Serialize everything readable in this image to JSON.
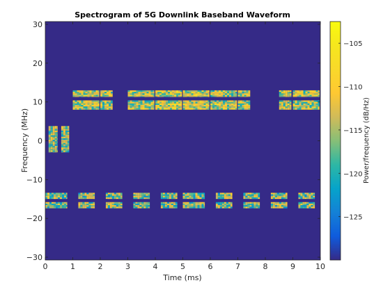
{
  "chart_data": {
    "type": "heatmap",
    "title": "Spectrogram of 5G Downlink Baseband Waveform",
    "xlabel": "Time (ms)",
    "ylabel": "Frequency (MHz)",
    "xlim": [
      0,
      10
    ],
    "ylim": [
      -30.72,
      30.72
    ],
    "xticks": [
      0,
      1,
      2,
      3,
      4,
      5,
      6,
      7,
      8,
      9,
      10
    ],
    "yticks": [
      -30,
      -20,
      -10,
      0,
      10,
      20,
      30
    ],
    "grid": false,
    "colorbar": {
      "label": "Power/frequency (dB/Hz)",
      "range": [
        -130,
        -102.5
      ],
      "ticks": [
        -125,
        -120,
        -115,
        -110,
        -105
      ],
      "colormap": "parula"
    },
    "background_level_db": -130,
    "bursts": [
      {
        "t": [
          0.12,
          0.45
        ],
        "f": [
          -3.0,
          3.8
        ],
        "level_db": -116
      },
      {
        "t": [
          0.58,
          0.87
        ],
        "f": [
          -3.0,
          3.8
        ],
        "level_db": -116
      },
      {
        "t": [
          1.0,
          1.97
        ],
        "f": [
          11.3,
          13.0
        ],
        "level_db": -114
      },
      {
        "t": [
          2.0,
          2.45
        ],
        "f": [
          11.3,
          13.0
        ],
        "level_db": -114
      },
      {
        "t": [
          3.0,
          3.97
        ],
        "f": [
          11.3,
          13.0
        ],
        "level_db": -114
      },
      {
        "t": [
          4.0,
          4.97
        ],
        "f": [
          11.3,
          13.0
        ],
        "level_db": -113
      },
      {
        "t": [
          5.0,
          5.97
        ],
        "f": [
          11.3,
          13.0
        ],
        "level_db": -113
      },
      {
        "t": [
          6.0,
          6.97
        ],
        "f": [
          11.3,
          13.0
        ],
        "level_db": -114
      },
      {
        "t": [
          7.0,
          7.45
        ],
        "f": [
          11.3,
          13.0
        ],
        "level_db": -114
      },
      {
        "t": [
          8.5,
          8.95
        ],
        "f": [
          11.3,
          13.0
        ],
        "level_db": -114
      },
      {
        "t": [
          9.0,
          9.97
        ],
        "f": [
          11.3,
          13.0
        ],
        "level_db": -114
      },
      {
        "t": [
          1.0,
          1.97
        ],
        "f": [
          8.0,
          10.4
        ],
        "level_db": -114
      },
      {
        "t": [
          2.0,
          2.45
        ],
        "f": [
          8.0,
          10.4
        ],
        "level_db": -114
      },
      {
        "t": [
          3.0,
          3.97
        ],
        "f": [
          8.0,
          10.4
        ],
        "level_db": -114
      },
      {
        "t": [
          4.0,
          4.97
        ],
        "f": [
          8.0,
          10.4
        ],
        "level_db": -113
      },
      {
        "t": [
          5.0,
          5.97
        ],
        "f": [
          8.0,
          10.4
        ],
        "level_db": -113
      },
      {
        "t": [
          6.0,
          6.97
        ],
        "f": [
          8.0,
          10.4
        ],
        "level_db": -114
      },
      {
        "t": [
          7.0,
          7.45
        ],
        "f": [
          8.0,
          10.4
        ],
        "level_db": -114
      },
      {
        "t": [
          8.5,
          8.95
        ],
        "f": [
          8.0,
          10.4
        ],
        "level_db": -114
      },
      {
        "t": [
          9.0,
          9.97
        ],
        "f": [
          8.0,
          10.4
        ],
        "level_db": -114
      },
      {
        "t": [
          0.0,
          0.8
        ],
        "f": [
          -15.0,
          -13.4
        ],
        "level_db": -116
      },
      {
        "t": [
          1.2,
          1.8
        ],
        "f": [
          -15.0,
          -13.4
        ],
        "level_db": -116
      },
      {
        "t": [
          2.2,
          2.8
        ],
        "f": [
          -15.0,
          -13.4
        ],
        "level_db": -116
      },
      {
        "t": [
          3.2,
          3.8
        ],
        "f": [
          -15.0,
          -13.4
        ],
        "level_db": -116
      },
      {
        "t": [
          4.2,
          4.8
        ],
        "f": [
          -15.0,
          -13.4
        ],
        "level_db": -116
      },
      {
        "t": [
          5.0,
          5.8
        ],
        "f": [
          -15.0,
          -13.4
        ],
        "level_db": -116
      },
      {
        "t": [
          6.2,
          6.8
        ],
        "f": [
          -15.0,
          -13.4
        ],
        "level_db": -116
      },
      {
        "t": [
          7.2,
          7.8
        ],
        "f": [
          -15.0,
          -13.4
        ],
        "level_db": -116
      },
      {
        "t": [
          8.2,
          8.8
        ],
        "f": [
          -15.0,
          -13.4
        ],
        "level_db": -116
      },
      {
        "t": [
          9.2,
          9.8
        ],
        "f": [
          -15.0,
          -13.4
        ],
        "level_db": -116
      },
      {
        "t": [
          0.0,
          0.8
        ],
        "f": [
          -17.4,
          -15.8
        ],
        "level_db": -116
      },
      {
        "t": [
          1.2,
          1.8
        ],
        "f": [
          -17.4,
          -15.8
        ],
        "level_db": -116
      },
      {
        "t": [
          2.2,
          2.8
        ],
        "f": [
          -17.4,
          -15.8
        ],
        "level_db": -116
      },
      {
        "t": [
          3.2,
          3.8
        ],
        "f": [
          -17.4,
          -15.8
        ],
        "level_db": -116
      },
      {
        "t": [
          4.2,
          4.8
        ],
        "f": [
          -17.4,
          -15.8
        ],
        "level_db": -116
      },
      {
        "t": [
          5.0,
          5.8
        ],
        "f": [
          -17.4,
          -15.8
        ],
        "level_db": -116
      },
      {
        "t": [
          6.2,
          6.8
        ],
        "f": [
          -17.4,
          -15.8
        ],
        "level_db": -116
      },
      {
        "t": [
          7.2,
          7.8
        ],
        "f": [
          -17.4,
          -15.8
        ],
        "level_db": -116
      },
      {
        "t": [
          8.2,
          8.8
        ],
        "f": [
          -17.4,
          -15.8
        ],
        "level_db": -116
      },
      {
        "t": [
          9.2,
          9.8
        ],
        "f": [
          -17.4,
          -15.8
        ],
        "level_db": -116
      }
    ]
  }
}
